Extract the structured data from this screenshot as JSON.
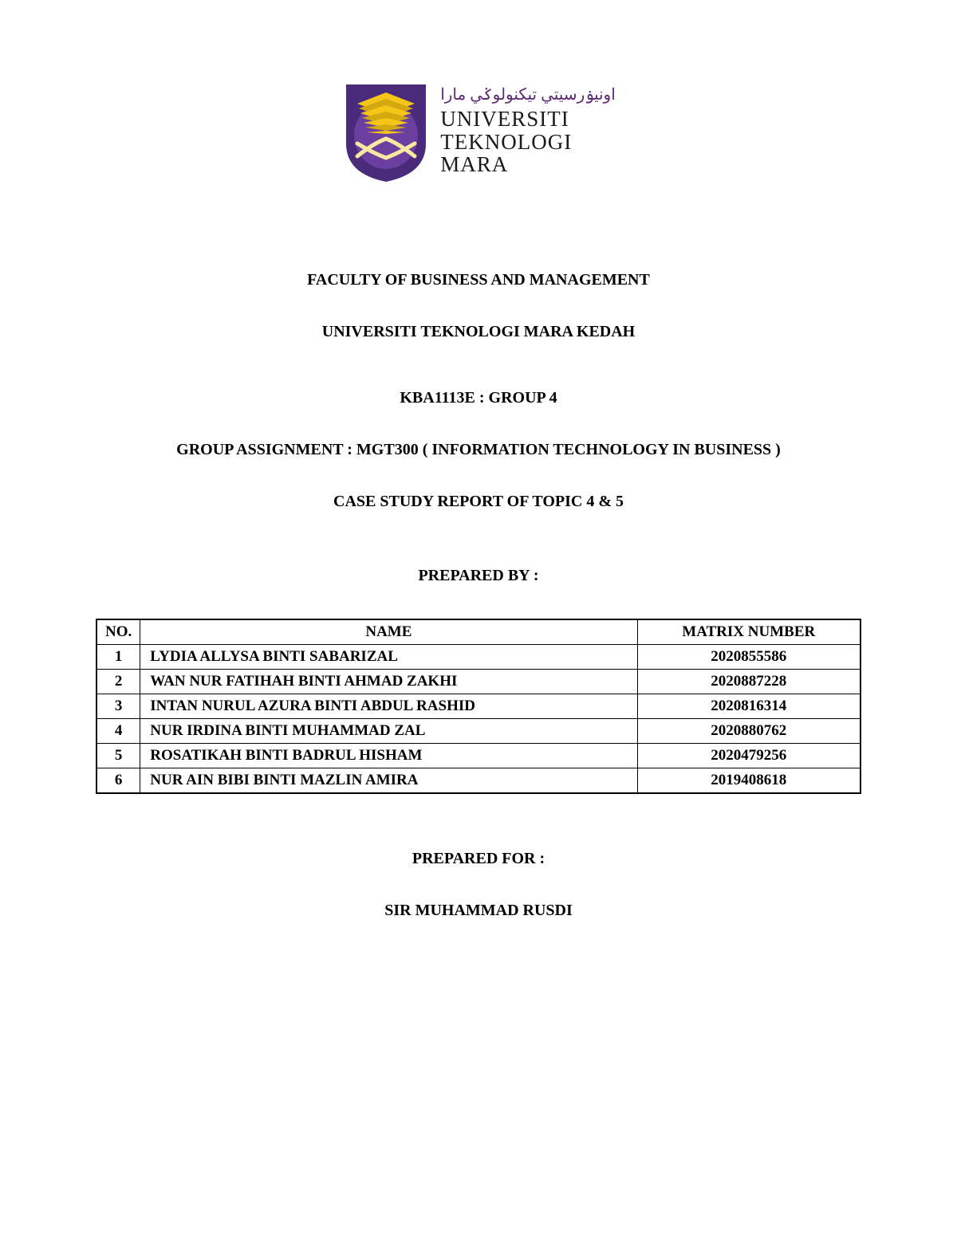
{
  "logo": {
    "jawi_line": "اونيۏرسيتي تيكنولوݢي مارا",
    "line1": "UNIVERSITI",
    "line2": "TEKNOLOGI",
    "line3": "MARA",
    "colors": {
      "shield_bg": "#4a2a7a",
      "shield_inner": "#6b3fa0",
      "book_gold": "#f5c518",
      "book_gold_dark": "#d4a80f",
      "swords": "#f7e9a0",
      "text_purple": "#5b2a73"
    }
  },
  "headings": {
    "faculty": "FACULTY OF BUSINESS AND MANAGEMENT",
    "campus": "UNIVERSITI TEKNOLOGI MARA KEDAH",
    "group": "KBA1113E : GROUP 4",
    "assignment": "GROUP ASSIGNMENT : MGT300 ( INFORMATION TECHNOLOGY IN BUSINESS )",
    "case": "CASE STUDY REPORT OF TOPIC 4 & 5",
    "prepared_by": "PREPARED BY :",
    "prepared_for": "PREPARED FOR :",
    "lecturer": "SIR MUHAMMAD RUSDI"
  },
  "table": {
    "columns": [
      "NO.",
      "NAME",
      "MATRIX NUMBER"
    ],
    "rows": [
      {
        "no": "1",
        "name": "LYDIA ALLYSA BINTI SABARIZAL",
        "matrix": "2020855586"
      },
      {
        "no": "2",
        "name": "WAN NUR FATIHAH BINTI AHMAD ZAKHI",
        "matrix": "2020887228"
      },
      {
        "no": "3",
        "name": "INTAN NURUL AZURA BINTI ABDUL RASHID",
        "matrix": "2020816314"
      },
      {
        "no": "4",
        "name": "NUR IRDINA BINTI MUHAMMAD ZAL",
        "matrix": "2020880762"
      },
      {
        "no": "5",
        "name": "ROSATIKAH BINTI BADRUL HISHAM",
        "matrix": "2020479256"
      },
      {
        "no": "6",
        "name": "NUR AIN BIBI BINTI  MAZLIN AMIRA",
        "matrix": "2019408618"
      }
    ]
  }
}
